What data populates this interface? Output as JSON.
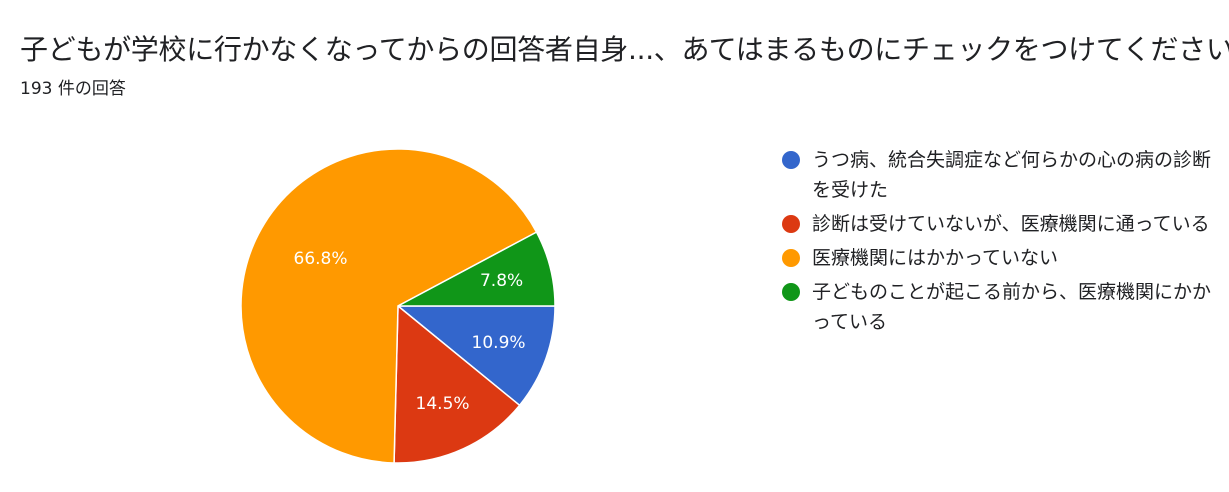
{
  "header": {
    "title": "子どもが学校に行かなくなってからの回答者自身...、あてはまるものにチェックをつけてください。",
    "response_count": "193 件の回答"
  },
  "chart_data": {
    "type": "pie",
    "title": "子どもが学校に行かなくなってからの回答者自身...、あてはまるものにチェックをつけてください。",
    "subtitle": "193 件の回答",
    "legend_position": "right",
    "slices": [
      {
        "label": "うつ病、統合失調症など何らかの心の病の診断を受けた",
        "value": 10.9,
        "display": "10.9%",
        "color": "#3366cc"
      },
      {
        "label": "診断は受けていないが、医療機関に通っている",
        "value": 14.5,
        "display": "14.5%",
        "color": "#dc3912"
      },
      {
        "label": "医療機関にはかかっていない",
        "value": 66.8,
        "display": "66.8%",
        "color": "#ff9900"
      },
      {
        "label": "子どものことが起こる前から、医療機関にかかっている",
        "value": 7.8,
        "display": "7.8%",
        "color": "#109618"
      }
    ]
  }
}
